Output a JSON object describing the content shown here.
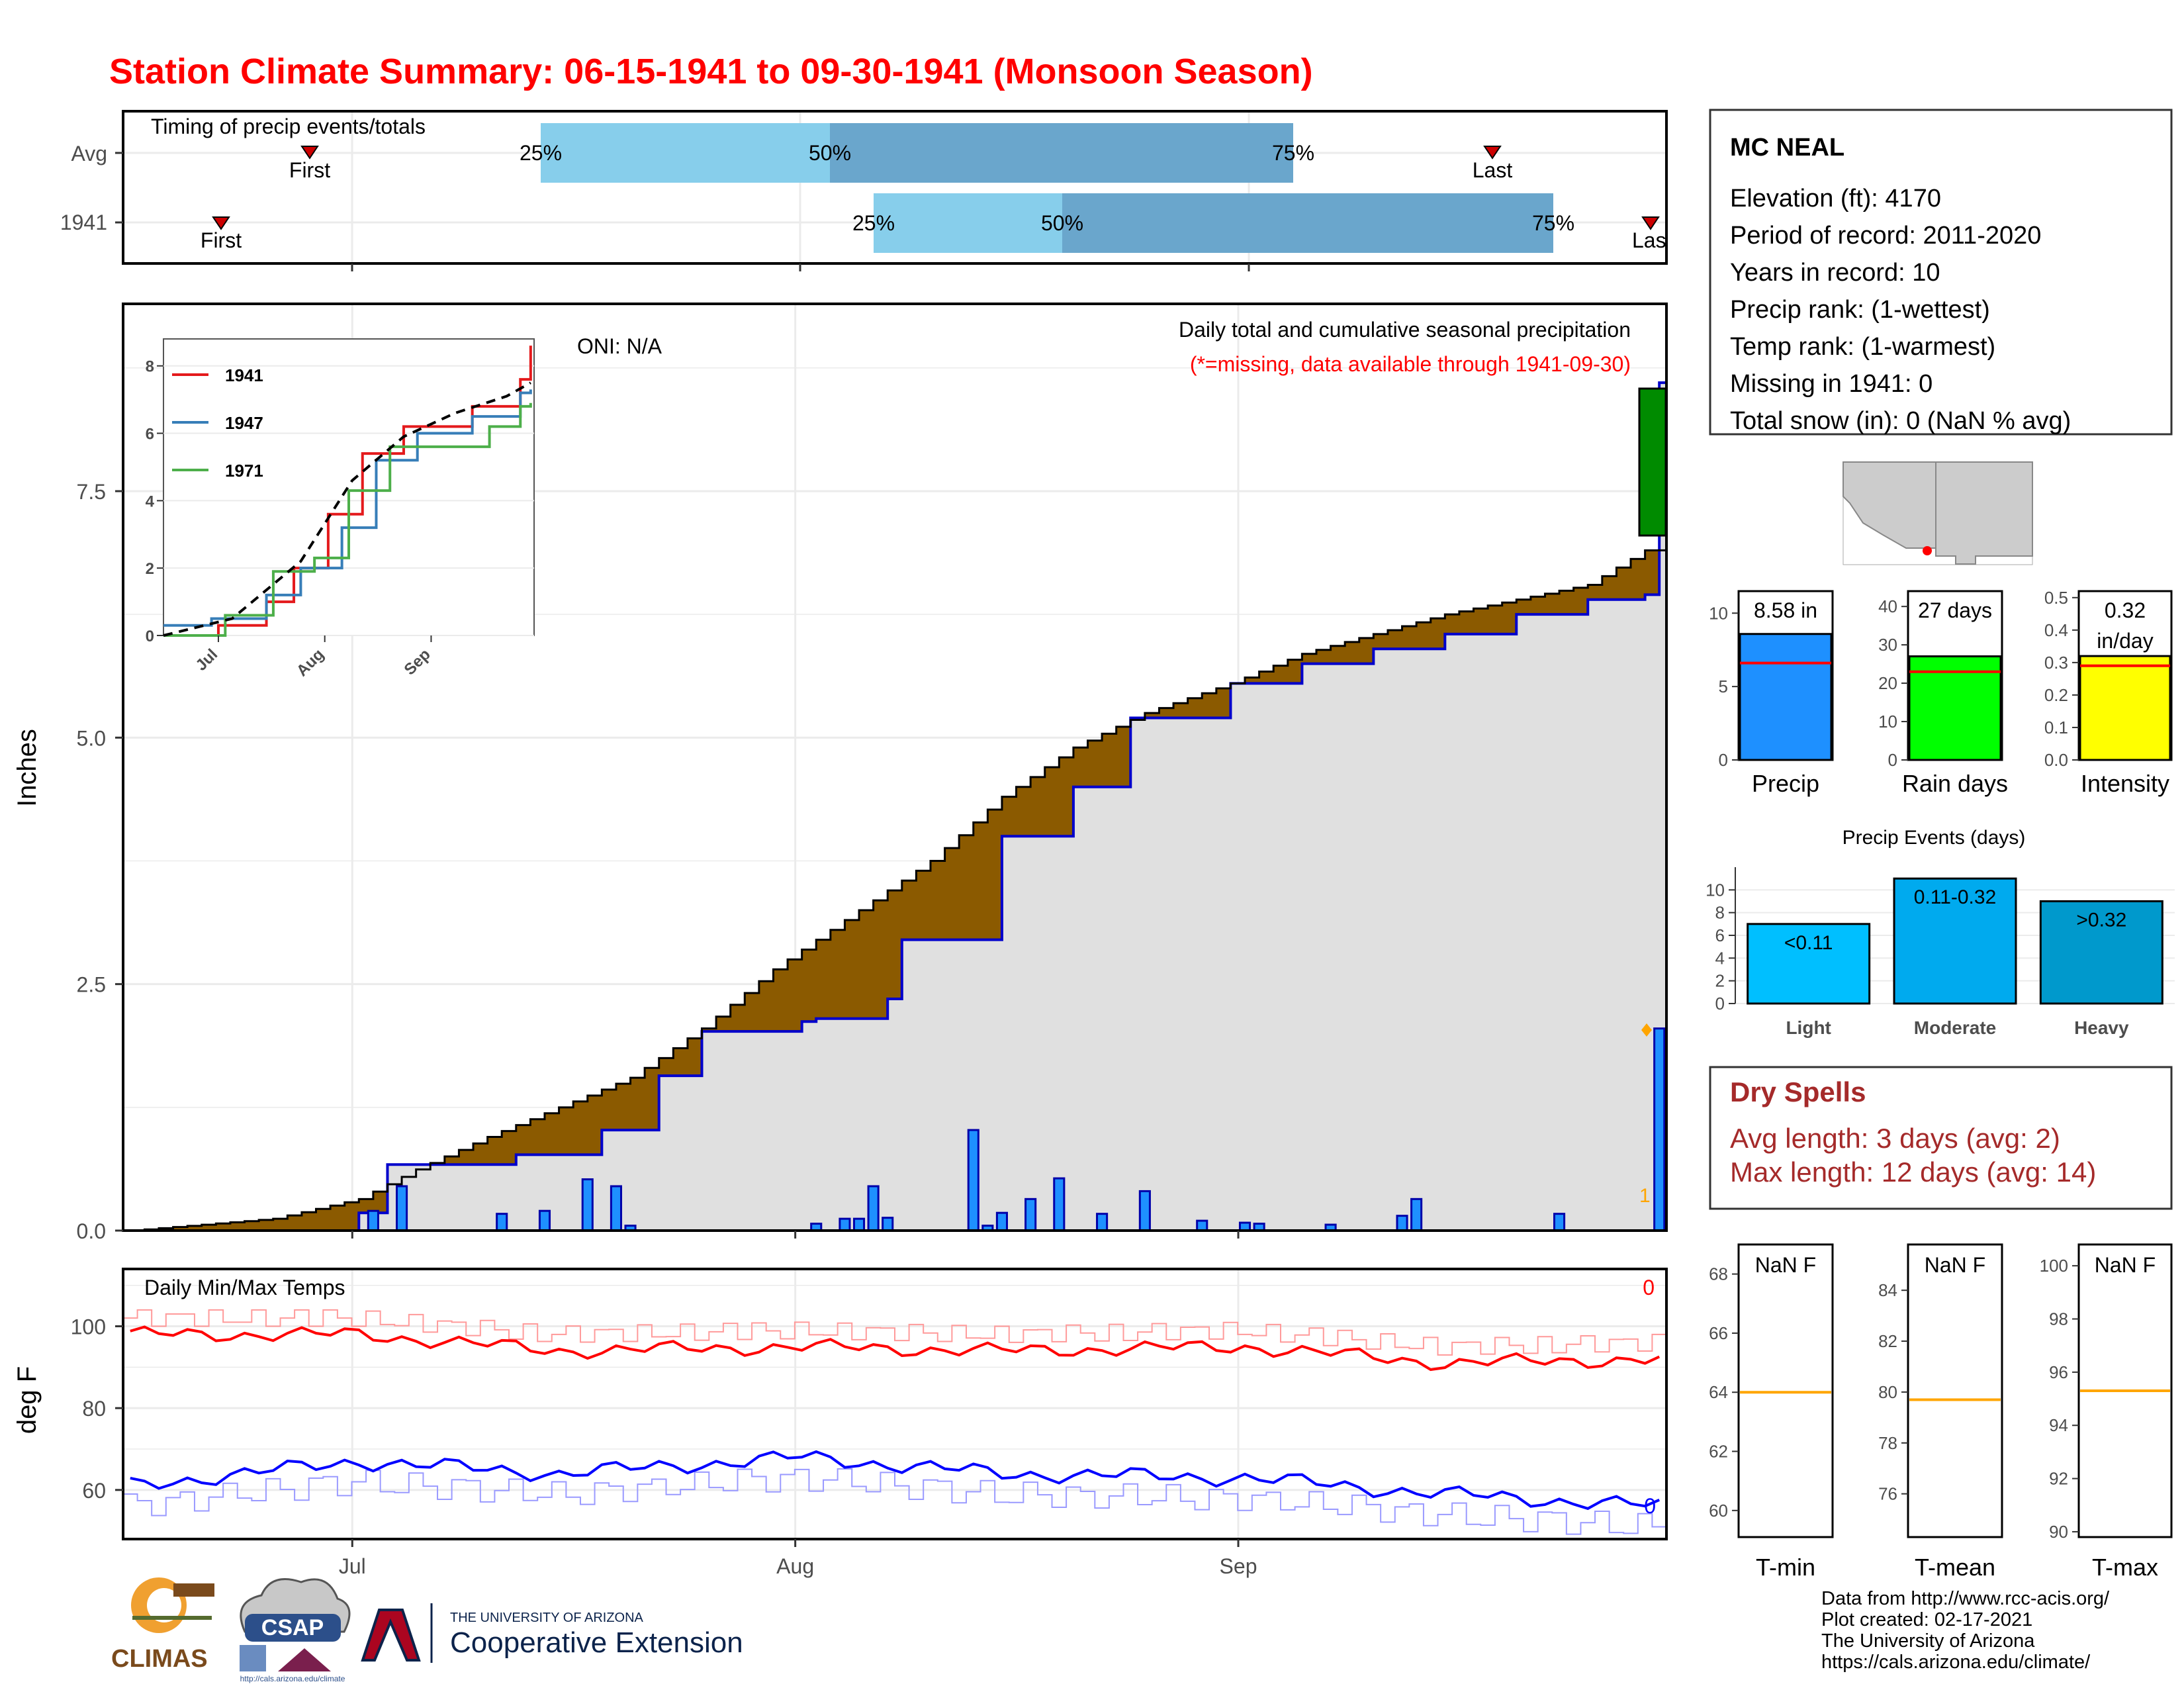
{
  "title": "Station Climate Summary: 06-15-1941 to 09-30-1941 (Monsoon Season)",
  "colors": {
    "title": "#ff0000",
    "bar_light": "#87ceeb",
    "bar_dark": "#6aa6cc",
    "cum_fill_1941": "#8b5a00",
    "cum_fill_avg": "#e0e0e0",
    "avg_line": "#0000cc",
    "daily_bar": "#1e90ff",
    "green_bar": "#008b00",
    "rain_days": "#00ff00",
    "intensity": "#ffff00",
    "events_light": "#00bfff",
    "events_mod": "#00aaee",
    "events_heavy": "#0099cc",
    "dry_spell": "#a52a2a",
    "tmax": "#ff0000",
    "tmin": "#0000ff",
    "avg_marker": "#ffa500"
  },
  "timing": {
    "label": "Timing of precip events/totals",
    "rows": [
      "Avg",
      "1941"
    ],
    "first_label": "First",
    "last_label": "Last",
    "last_label_1941": "Las",
    "pct_25": "25%",
    "pct_50": "50%",
    "pct_75": "75%"
  },
  "main": {
    "ylabel": "Inches",
    "oni": "ONI: N/A",
    "subtitle": "Daily total and cumulative seasonal precipitation",
    "missing_note": "(*=missing, data available through 1941-09-30)",
    "count_label": "1",
    "yticks": [
      "0.0",
      "2.5",
      "5.0",
      "7.5"
    ]
  },
  "inset": {
    "years": [
      "1941",
      "1947",
      "1971"
    ],
    "yticks": [
      "0",
      "2",
      "4",
      "6",
      "8"
    ],
    "xticks": [
      "Jul",
      "Aug",
      "Sep"
    ]
  },
  "temps": {
    "label": "Daily Min/Max Temps",
    "ylabel": "deg F",
    "yticks": [
      "60",
      "80",
      "100"
    ],
    "max_count": "0",
    "min_count": "0"
  },
  "xticks": [
    "Jul",
    "Aug",
    "Sep"
  ],
  "station": {
    "name": "MC NEAL",
    "lines": [
      "Elevation (ft): 4170",
      "Period of record: 2011-2020",
      "Years in record: 10",
      "Precip rank:  (1-wettest)",
      "Temp rank:  (1-warmest)",
      "Missing in 1941: 0",
      "Total snow (in): 0 (NaN % avg)"
    ]
  },
  "minis": {
    "precip": {
      "label": "Precip",
      "value_label": "8.58 in",
      "value": 8.58,
      "avg": 6.6,
      "yticks": [
        "0",
        "5",
        "10"
      ]
    },
    "rain_days": {
      "label": "Rain days",
      "value_label": "27 days",
      "value": 27,
      "avg": 23,
      "yticks": [
        "0",
        "10",
        "20",
        "30",
        "40"
      ]
    },
    "intensity": {
      "label": "Intensity",
      "value_label_1": "0.32",
      "value_label_2": "in/day",
      "value": 0.32,
      "avg": 0.29,
      "yticks": [
        "0.0",
        "0.1",
        "0.2",
        "0.3",
        "0.4",
        "0.5"
      ]
    }
  },
  "events": {
    "title": "Precip Events (days)",
    "categories": [
      "Light",
      "Moderate",
      "Heavy"
    ],
    "bar_labels": [
      "<0.11",
      "0.11-0.32",
      ">0.32"
    ],
    "values": [
      7,
      11,
      9
    ],
    "yticks": [
      "0",
      "2",
      "4",
      "6",
      "8",
      "10"
    ]
  },
  "dry_spells": {
    "title": "Dry Spells",
    "avg_length": "Avg length: 3 days (avg: 2)",
    "max_length": "Max length: 12 days (avg: 14)"
  },
  "temp_minis": {
    "tmin": {
      "label": "T-min",
      "value_label": "NaN F",
      "avg": 64.0,
      "yticks": [
        "60",
        "62",
        "64",
        "66",
        "68"
      ]
    },
    "tmean": {
      "label": "T-mean",
      "value_label": "NaN F",
      "avg": 79.7,
      "yticks": [
        "76",
        "78",
        "80",
        "82",
        "84"
      ]
    },
    "tmax": {
      "label": "T-max",
      "value_label": "NaN F",
      "avg": 95.3,
      "yticks": [
        "90",
        "92",
        "94",
        "96",
        "98",
        "100"
      ]
    }
  },
  "footer": {
    "lines": [
      "Data from http://www.rcc-acis.org/",
      "Plot created: 02-17-2021",
      "The University of Arizona",
      "https://cals.arizona.edu/climate/"
    ],
    "climas": "CLIMAS",
    "csap": "CSAP",
    "csap_url": "http://cals.arizona.edu/climate",
    "ua_small": "THE UNIVERSITY OF ARIZONA",
    "ua_big": "Cooperative Extension"
  },
  "chart_data": [
    {
      "type": "area",
      "title": "Daily total and cumulative seasonal precipitation",
      "ylabel": "Inches",
      "ylim": [
        0,
        9.4
      ],
      "x_range": [
        "1941-06-15",
        "1941-09-30"
      ],
      "cumulative_1941": {
        "x": [
          "06-15",
          "06-25",
          "07-01",
          "07-05",
          "07-10",
          "07-15",
          "07-20",
          "07-25",
          "07-30",
          "08-05",
          "08-10",
          "08-15",
          "08-20",
          "08-25",
          "08-31",
          "09-05",
          "09-10",
          "09-15",
          "09-20",
          "09-25",
          "09-29"
        ],
        "y": [
          0.0,
          0.12,
          0.32,
          0.62,
          0.95,
          1.25,
          1.55,
          2.05,
          2.65,
          3.25,
          3.75,
          4.4,
          4.9,
          5.25,
          5.55,
          5.85,
          6.05,
          6.25,
          6.4,
          6.55,
          6.9
        ]
      },
      "cumulative_avg": {
        "x": [
          "06-15",
          "07-01",
          "07-03",
          "07-07",
          "07-12",
          "07-18",
          "07-22",
          "07-25",
          "08-01",
          "08-02",
          "08-07",
          "08-08",
          "08-13",
          "08-15",
          "08-20",
          "08-24",
          "08-31",
          "09-05",
          "09-10",
          "09-15",
          "09-20",
          "09-25",
          "09-29",
          "09-30"
        ],
        "y": [
          0.0,
          0.18,
          0.67,
          0.67,
          0.77,
          1.02,
          1.57,
          2.02,
          2.12,
          2.15,
          2.35,
          2.95,
          2.95,
          4.0,
          4.5,
          5.2,
          5.55,
          5.75,
          5.9,
          6.05,
          6.25,
          6.4,
          6.45,
          8.6
        ]
      },
      "daily_1941": {
        "x": [
          "07-02",
          "07-04",
          "07-11",
          "07-14",
          "07-17",
          "07-19",
          "07-20",
          "08-02",
          "08-04",
          "08-05",
          "08-06",
          "08-07",
          "08-13",
          "08-14",
          "08-15",
          "08-17",
          "08-19",
          "08-22",
          "08-25",
          "08-29",
          "09-01",
          "09-02",
          "09-07",
          "09-12",
          "09-13",
          "09-23",
          "09-30"
        ],
        "y": [
          0.2,
          0.45,
          0.17,
          0.2,
          0.52,
          0.45,
          0.05,
          0.07,
          0.12,
          0.12,
          0.45,
          0.13,
          1.02,
          0.05,
          0.18,
          0.32,
          0.53,
          0.17,
          0.4,
          0.1,
          0.08,
          0.07,
          0.06,
          0.15,
          0.32,
          0.17,
          2.05
        ]
      }
    },
    {
      "type": "line",
      "title": "Daily Min/Max Temps",
      "ylabel": "deg F",
      "ylim": [
        48,
        114
      ],
      "series": [
        {
          "name": "Tmax",
          "x": [
            "06-15",
            "07-01",
            "07-15",
            "08-01",
            "08-15",
            "09-01",
            "09-15",
            "09-30"
          ],
          "y": [
            98,
            98,
            94,
            95,
            94,
            95,
            91,
            92
          ]
        },
        {
          "name": "Tmin",
          "x": [
            "06-15",
            "07-01",
            "07-15",
            "08-01",
            "08-15",
            "09-01",
            "09-15",
            "09-30"
          ],
          "y": [
            61,
            67,
            64,
            68,
            64,
            63,
            59,
            56
          ]
        }
      ]
    },
    {
      "type": "bar",
      "title": "Precip Events (days)",
      "categories": [
        "Light",
        "Moderate",
        "Heavy"
      ],
      "values": [
        7,
        11,
        9
      ]
    }
  ]
}
